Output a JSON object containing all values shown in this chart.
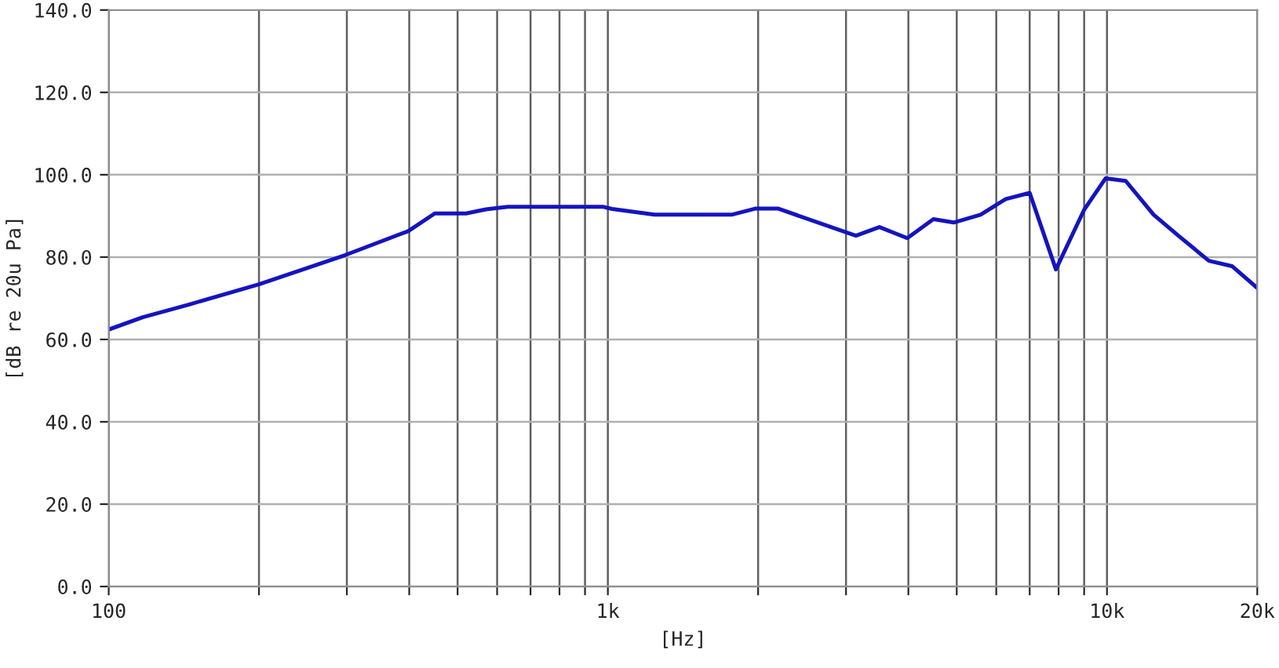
{
  "chart_data": {
    "type": "line",
    "xlabel": "[Hz]",
    "ylabel": "[dB re 20u Pa]",
    "log": "x",
    "grid": true,
    "marker": "none",
    "line_style": "solid",
    "legend": false,
    "xlim": [
      100,
      20000
    ],
    "ylim": [
      0,
      140
    ],
    "xticks": [
      {
        "value": 100,
        "label": "100"
      },
      {
        "value": 200,
        "label": null
      },
      {
        "value": 300,
        "label": null
      },
      {
        "value": 400,
        "label": null
      },
      {
        "value": 500,
        "label": null
      },
      {
        "value": 600,
        "label": null
      },
      {
        "value": 700,
        "label": null
      },
      {
        "value": 800,
        "label": null
      },
      {
        "value": 900,
        "label": null
      },
      {
        "value": 1000,
        "label": "1k"
      },
      {
        "value": 2000,
        "label": null
      },
      {
        "value": 3000,
        "label": null
      },
      {
        "value": 4000,
        "label": null
      },
      {
        "value": 5000,
        "label": null
      },
      {
        "value": 6000,
        "label": null
      },
      {
        "value": 7000,
        "label": null
      },
      {
        "value": 8000,
        "label": null
      },
      {
        "value": 9000,
        "label": null
      },
      {
        "value": 10000,
        "label": "10k"
      },
      {
        "value": 20000,
        "label": "20k"
      }
    ],
    "yticks": [
      {
        "value": 0,
        "label": "0.0"
      },
      {
        "value": 20,
        "label": "20.0"
      },
      {
        "value": 40,
        "label": "40.0"
      },
      {
        "value": 60,
        "label": "60.0"
      },
      {
        "value": 80,
        "label": "80.0"
      },
      {
        "value": 100,
        "label": "100.0"
      },
      {
        "value": 120,
        "label": "120.0"
      },
      {
        "value": 140,
        "label": "140.0"
      }
    ],
    "series": [
      {
        "color": "#1414c0",
        "x": [
          100,
          117,
          145,
          200,
          298,
          398,
          450,
          520,
          570,
          630,
          944,
          980,
          1020,
          1240,
          1770,
          1980,
          2190,
          3140,
          3500,
          3980,
          4490,
          4930,
          5580,
          6270,
          7000,
          7900,
          9000,
          9930,
          10900,
          12400,
          13900,
          16000,
          17800,
          20000
        ],
        "values": [
          62.4,
          65.4,
          68.5,
          73.4,
          80.5,
          86.3,
          90.6,
          90.6,
          91.6,
          92.2,
          92.2,
          92.2,
          91.7,
          90.3,
          90.3,
          91.8,
          91.8,
          85.2,
          87.3,
          84.6,
          89.2,
          88.4,
          90.3,
          94.1,
          95.6,
          77.0,
          91.5,
          99.1,
          98.5,
          90.3,
          85.2,
          79.1,
          77.8,
          72.5
        ]
      }
    ]
  }
}
